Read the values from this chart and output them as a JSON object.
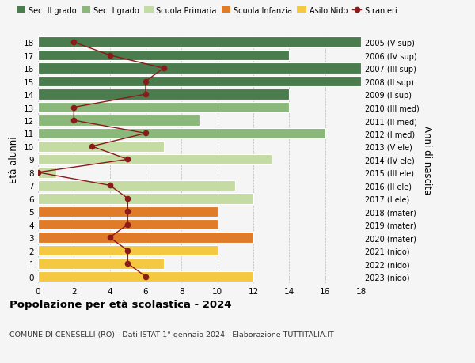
{
  "ages": [
    0,
    1,
    2,
    3,
    4,
    5,
    6,
    7,
    8,
    9,
    10,
    11,
    12,
    13,
    14,
    15,
    16,
    17,
    18
  ],
  "right_labels": [
    "2023 (nido)",
    "2022 (nido)",
    "2021 (nido)",
    "2020 (mater)",
    "2019 (mater)",
    "2018 (mater)",
    "2017 (I ele)",
    "2016 (II ele)",
    "2015 (III ele)",
    "2014 (IV ele)",
    "2013 (V ele)",
    "2012 (I med)",
    "2011 (II med)",
    "2010 (III med)",
    "2009 (I sup)",
    "2008 (II sup)",
    "2007 (III sup)",
    "2006 (IV sup)",
    "2005 (V sup)"
  ],
  "bar_values": [
    12,
    7,
    10,
    12,
    10,
    10,
    12,
    11,
    1,
    13,
    7,
    16,
    9,
    14,
    14,
    18,
    18,
    14,
    18
  ],
  "bar_colors": [
    "#f5c842",
    "#f5c842",
    "#f5c842",
    "#e07b2a",
    "#e07b2a",
    "#e07b2a",
    "#c5dba4",
    "#c5dba4",
    "#c5dba4",
    "#c5dba4",
    "#c5dba4",
    "#8ab87a",
    "#8ab87a",
    "#8ab87a",
    "#4a7c4e",
    "#4a7c4e",
    "#4a7c4e",
    "#4a7c4e",
    "#4a7c4e"
  ],
  "stranieri_values": [
    6,
    5,
    5,
    4,
    5,
    5,
    5,
    4,
    0,
    5,
    3,
    6,
    2,
    2,
    6,
    6,
    7,
    4,
    2
  ],
  "title": "Popolazione per età scolastica - 2024",
  "subtitle": "COMUNE DI CENESELLI (RO) - Dati ISTAT 1° gennaio 2024 - Elaborazione TUTTITALIA.IT",
  "ylabel": "Età alunni",
  "right_ylabel": "Anni di nascita",
  "xlim": [
    0,
    18
  ],
  "xticks": [
    0,
    2,
    4,
    6,
    8,
    10,
    12,
    14,
    16,
    18
  ],
  "legend_labels": [
    "Sec. II grado",
    "Sec. I grado",
    "Scuola Primaria",
    "Scuola Infanzia",
    "Asilo Nido",
    "Stranieri"
  ],
  "legend_colors": [
    "#4a7c4e",
    "#8ab87a",
    "#c5dba4",
    "#e07b2a",
    "#f5c842",
    "#8b1a1a"
  ],
  "color_stranieri": "#8b1a1a",
  "background_color": "#f5f5f5",
  "grid_color": "#bbbbbb"
}
